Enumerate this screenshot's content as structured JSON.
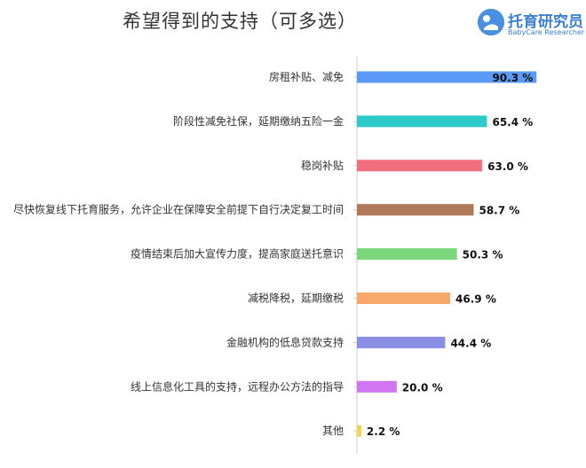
{
  "chart_data": {
    "type": "bar",
    "orientation": "horizontal",
    "title": "希望得到的支持（可多选）",
    "categories": [
      "房租补贴、减免",
      "阶段性减免社保，延期缴纳五险一金",
      "稳岗补贴",
      "尽快恢复线下托育服务，允许企业在保障安全前提下自行决定复工时间",
      "疫情结束后加大宣传力度，提高家庭送托意识",
      "减税降税，延期缴税",
      "金融机构的低息贷款支持",
      "线上信息化工具的支持，远程办公方法的指导",
      "其他"
    ],
    "values": [
      90.3,
      65.4,
      63.0,
      58.7,
      50.3,
      46.9,
      44.4,
      20.0,
      2.2
    ],
    "value_labels": [
      "90.3 %",
      "65.4 %",
      "63.0 %",
      "58.7 %",
      "50.3 %",
      "46.9 %",
      "44.4 %",
      "20.0 %",
      "2.2 %"
    ],
    "colors": [
      "#5b9bf7",
      "#2ec9c9",
      "#f36e7f",
      "#b07a5a",
      "#7cd67a",
      "#f8a86a",
      "#8a8fe3",
      "#cf76f0",
      "#f5d54a"
    ],
    "xlim": [
      0,
      100
    ],
    "grid": false,
    "legend": "none"
  },
  "logo": {
    "name": "托育研究员",
    "sub": "BabyCare Researcher"
  }
}
